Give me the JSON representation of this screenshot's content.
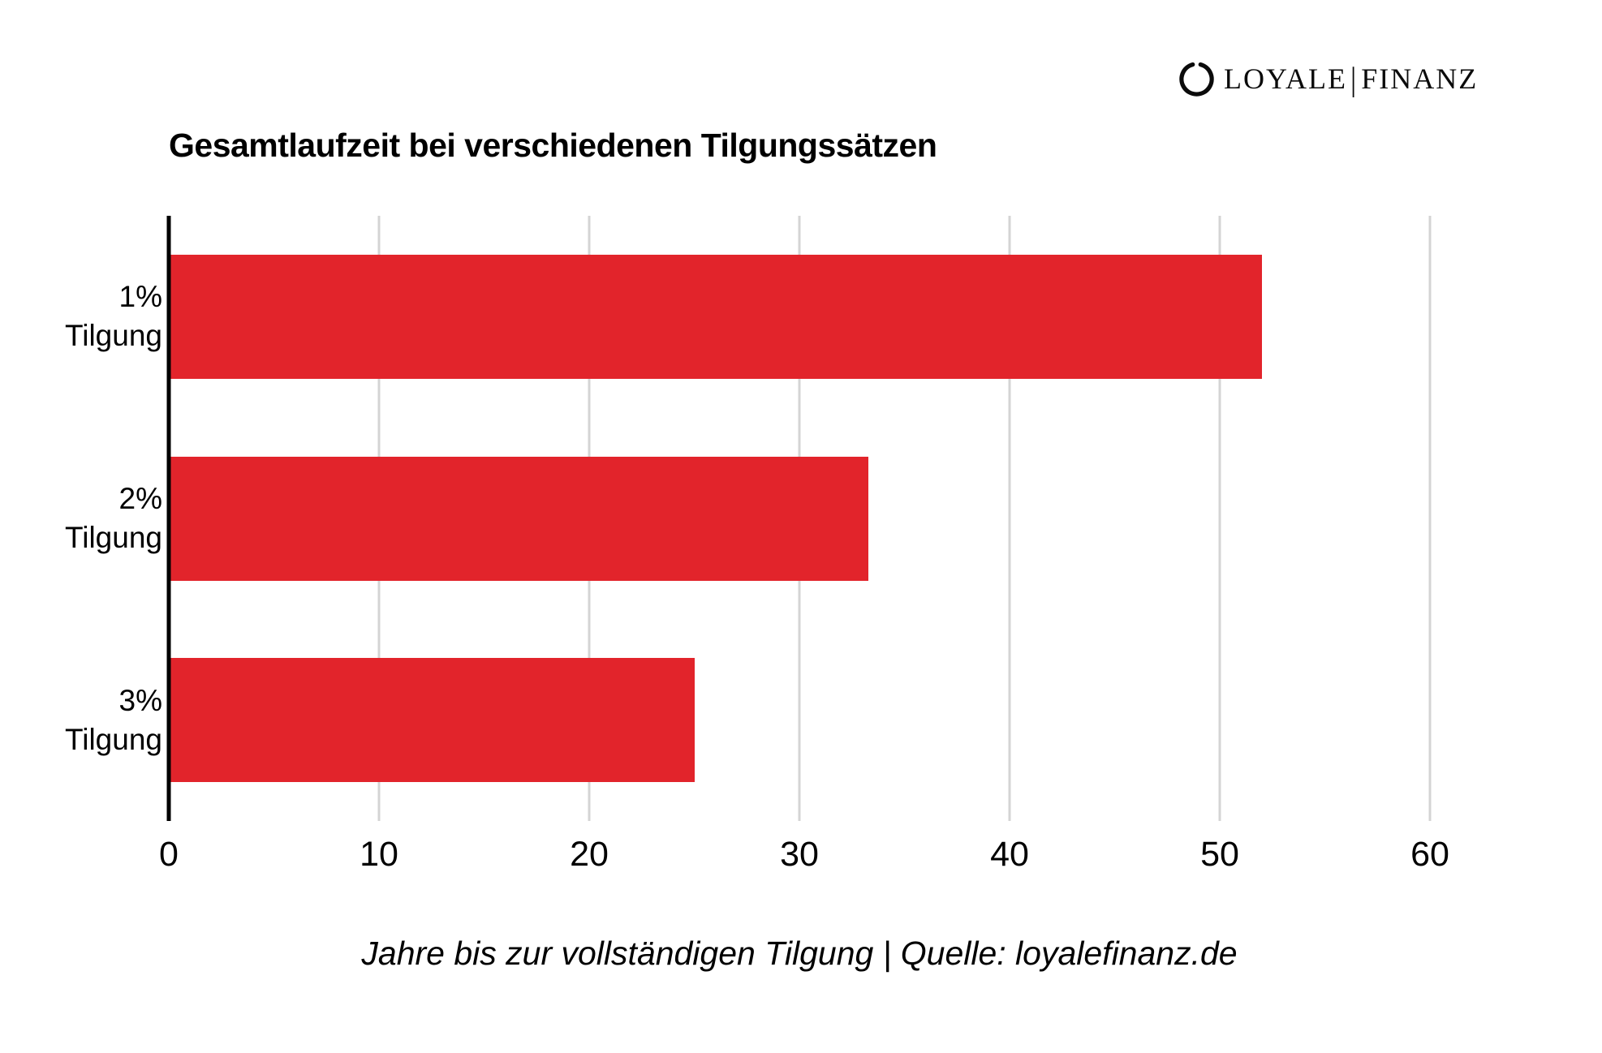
{
  "logo": {
    "part1": "LOYALE",
    "divider": "|",
    "part2": "FINANZ",
    "icon": "enso-circle-icon"
  },
  "colors": {
    "bar": "#e2242b",
    "gridline": "#d4d4d4",
    "axis": "#000000",
    "text": "#000000",
    "background": "#ffffff"
  },
  "chart_data": {
    "type": "bar",
    "orientation": "horizontal",
    "title": "Gesamtlaufzeit bei verschiedenen Tilgungssätzen",
    "categories": [
      [
        "1%",
        "Tilgung"
      ],
      [
        "2%",
        "Tilgung"
      ],
      [
        "3%",
        "Tilgung"
      ]
    ],
    "values": [
      52,
      33.3,
      25
    ],
    "unit": "Jahre",
    "xlabel": "",
    "ylabel": "",
    "xlim": [
      0,
      60
    ],
    "xticks": [
      0,
      10,
      20,
      30,
      40,
      50,
      60
    ],
    "grid": true,
    "legend": "none",
    "bar_color": "#e2242b",
    "caption": "Jahre bis zur vollständigen Tilgung | Quelle: loyalefinanz.de"
  }
}
